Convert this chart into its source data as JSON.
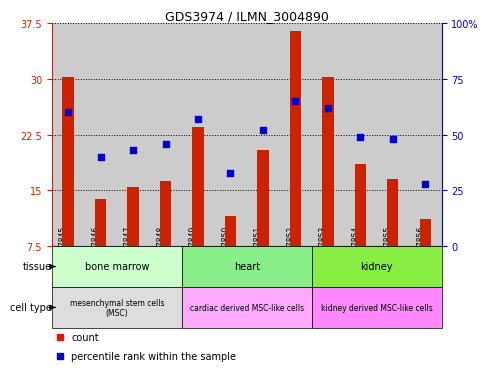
{
  "title": "GDS3974 / ILMN_3004890",
  "samples": [
    "GSM787845",
    "GSM787846",
    "GSM787847",
    "GSM787848",
    "GSM787849",
    "GSM787850",
    "GSM787851",
    "GSM787852",
    "GSM787853",
    "GSM787854",
    "GSM787855",
    "GSM787856"
  ],
  "bar_values": [
    30.2,
    13.8,
    15.5,
    16.2,
    23.5,
    11.5,
    20.5,
    36.5,
    30.2,
    18.5,
    16.5,
    11.2
  ],
  "dot_values_pct": [
    60,
    40,
    43,
    46,
    57,
    33,
    52,
    65,
    62,
    49,
    48,
    28
  ],
  "ylim_left": [
    7.5,
    37.5
  ],
  "ylim_right": [
    0,
    100
  ],
  "yticks_left": [
    7.5,
    15.0,
    22.5,
    30.0,
    37.5
  ],
  "yticks_right": [
    0,
    25,
    50,
    75,
    100
  ],
  "bar_color": "#CC2200",
  "dot_color": "#0000CC",
  "tissue_groups": [
    {
      "label": "bone marrow",
      "start": 0,
      "end": 3,
      "color": "#CCFFCC"
    },
    {
      "label": "heart",
      "start": 4,
      "end": 7,
      "color": "#88EE88"
    },
    {
      "label": "kidney",
      "start": 8,
      "end": 11,
      "color": "#88EE44"
    }
  ],
  "celltype_groups": [
    {
      "label": "mesenchymal stem cells\n(MSC)",
      "start": 0,
      "end": 3,
      "color": "#DDDDDD"
    },
    {
      "label": "cardiac derived MSC-like cells",
      "start": 4,
      "end": 7,
      "color": "#FFAAFF"
    },
    {
      "label": "kidney derived MSC-like cells",
      "start": 8,
      "end": 11,
      "color": "#FF88FF"
    }
  ],
  "legend_count_label": "count",
  "legend_pct_label": "percentile rank within the sample",
  "bg_color": "#FFFFFF",
  "sample_bg_color": "#CCCCCC"
}
